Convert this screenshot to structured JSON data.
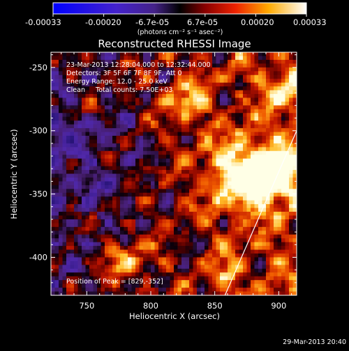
{
  "colorbar": {
    "ticks": [
      "-0.00033",
      "-0.00020",
      "-6.7e-05",
      "6.7e-05",
      "0.00020",
      "0.00033"
    ],
    "units_text": "(photons cm⁻² s⁻¹ asec⁻²)"
  },
  "chart_data": {
    "type": "heatmap",
    "title": "Reconstructed RHESSI Image",
    "xlabel": "Heliocentric X (arcsec)",
    "ylabel": "Heliocentric Y (arcsec)",
    "xlim": [
      722,
      914
    ],
    "ylim": [
      -430,
      -238
    ],
    "xticks": [
      "750",
      "800",
      "850",
      "900"
    ],
    "yticks": [
      "-250",
      "-300",
      "-350",
      "-400"
    ],
    "grid": false,
    "limb_line": {
      "x": [
        858,
        914
      ],
      "y": [
        -430,
        -300
      ]
    },
    "peak": {
      "x": 829,
      "y": -352
    }
  },
  "annotations": {
    "time_range": "23-Mar-2013 12:28:04.000 to 12:32:44.000",
    "detectors": "Detectors: 3F 5F 6F 7F 8F 9F, Att 0",
    "energy_range": "Energy Range: 12.0 - 25.0 keV",
    "clean_counts": "Clean     Total counts: 7.50E+03",
    "peak_position": "Position of Peak = [829,-352]"
  },
  "footer": {
    "timestamp": "29-Mar-2013 20:40"
  }
}
